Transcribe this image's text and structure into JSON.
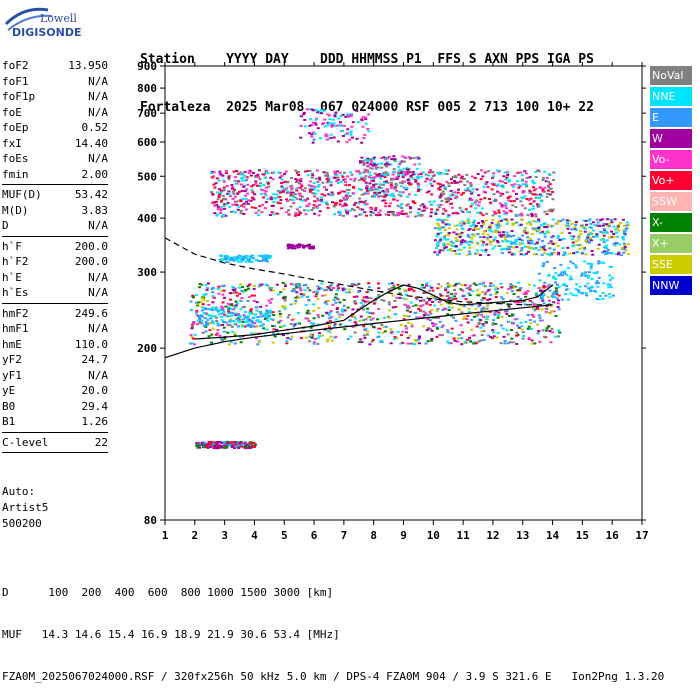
{
  "logo": {
    "line1": "Lowell",
    "line2": "DIGISONDE"
  },
  "header": {
    "labels": "Station    YYYY DAY    DDD HHMMSS P1  FFS S AXN PPS IGA PS",
    "values": "Fortaleza  2025 Mar08  067 024000 RSF 005 2 713 100 10+ 22"
  },
  "params": [
    {
      "name": "foF2",
      "value": "13.950"
    },
    {
      "name": "foF1",
      "value": "N/A"
    },
    {
      "name": "foF1p",
      "value": "N/A"
    },
    {
      "name": "foE",
      "value": "N/A"
    },
    {
      "name": "foEp",
      "value": "0.52"
    },
    {
      "name": "fxI",
      "value": "14.40"
    },
    {
      "name": "foEs",
      "value": "N/A"
    },
    {
      "name": "fmin",
      "value": "2.00"
    },
    {
      "sep": true
    },
    {
      "name": "MUF(D)",
      "value": "53.42"
    },
    {
      "name": "M(D)",
      "value": "3.83"
    },
    {
      "name": "D",
      "value": "N/A"
    },
    {
      "sep": true
    },
    {
      "name": "h`F",
      "value": "200.0"
    },
    {
      "name": "h`F2",
      "value": "200.0"
    },
    {
      "name": "h`E",
      "value": "N/A"
    },
    {
      "name": "h`Es",
      "value": "N/A"
    },
    {
      "sep": true
    },
    {
      "name": "hmF2",
      "value": "249.6"
    },
    {
      "name": "hmF1",
      "value": "N/A"
    },
    {
      "name": "hmE",
      "value": "110.0"
    },
    {
      "name": "yF2",
      "value": "24.7"
    },
    {
      "name": "yF1",
      "value": "N/A"
    },
    {
      "name": "yE",
      "value": "20.0"
    },
    {
      "name": "B0",
      "value": "29.4"
    },
    {
      "name": "B1",
      "value": "1.26"
    },
    {
      "sep": true
    },
    {
      "name": "C-level",
      "value": "22"
    },
    {
      "sep": true
    }
  ],
  "auto": {
    "line1": "Auto:",
    "line2": "Artist5",
    "line3": "500200"
  },
  "legend": [
    {
      "label": "NoVal",
      "color": "#808080"
    },
    {
      "label": "NNE",
      "color": "#00e5ff"
    },
    {
      "label": "E",
      "color": "#3399ff"
    },
    {
      "label": "W",
      "color": "#a000a0"
    },
    {
      "label": "Vo-",
      "color": "#ff33cc"
    },
    {
      "label": "Vo+",
      "color": "#ff0033"
    },
    {
      "label": "SSW",
      "color": "#ffb3b3"
    },
    {
      "label": "X-",
      "color": "#008000"
    },
    {
      "label": "X+",
      "color": "#99cc66"
    },
    {
      "label": "SSE",
      "color": "#cccc00"
    },
    {
      "label": "NNW",
      "color": "#0000cc"
    }
  ],
  "footer": {
    "line1": "D      100  200  400  600  800 1000 1500 3000 [km]",
    "line2": "MUF   14.3 14.6 15.4 16.9 18.9 21.9 30.6 53.4 [MHz]",
    "line3": "FZA0M_2025067024000.RSF / 320fx256h 50 kHz 5.0 km / DPS-4 FZA0M 904 / 3.9 S 321.6 E   Ion2Png 1.3.20"
  },
  "chart_data": {
    "type": "scatter",
    "title": "",
    "xlabel": "",
    "ylabel": "",
    "xlim": [
      1,
      17
    ],
    "ylim": [
      80,
      900
    ],
    "yscale": "log",
    "xticks": [
      1,
      2,
      3,
      4,
      5,
      6,
      7,
      8,
      9,
      10,
      11,
      12,
      13,
      14,
      15,
      16,
      17
    ],
    "yticks": [
      80,
      200,
      300,
      400,
      500,
      600,
      700,
      800,
      900
    ],
    "grid": false,
    "legend_placement": "right",
    "series": [
      {
        "color": "#000000",
        "style": "solid",
        "points": [
          [
            2.0,
            210
          ],
          [
            3.0,
            212
          ],
          [
            4.0,
            215
          ],
          [
            5.0,
            220
          ],
          [
            6.0,
            225
          ],
          [
            7.0,
            232
          ],
          [
            7.5,
            245
          ],
          [
            8.0,
            258
          ],
          [
            8.5,
            270
          ],
          [
            9.0,
            280
          ],
          [
            9.5,
            275
          ],
          [
            10.0,
            265
          ],
          [
            10.5,
            255
          ],
          [
            11.0,
            252
          ],
          [
            12.0,
            255
          ],
          [
            13.0,
            258
          ],
          [
            13.5,
            263
          ],
          [
            14.0,
            280
          ]
        ]
      },
      {
        "color": "#000000",
        "style": "solid",
        "points": [
          [
            1.0,
            190
          ],
          [
            2.0,
            200
          ],
          [
            3.0,
            207
          ],
          [
            4.0,
            212
          ],
          [
            5.0,
            216
          ],
          [
            6.0,
            220
          ],
          [
            7.0,
            224
          ],
          [
            8.0,
            228
          ],
          [
            9.0,
            232
          ],
          [
            10.0,
            236
          ],
          [
            11.0,
            240
          ],
          [
            12.0,
            244
          ],
          [
            13.0,
            248
          ],
          [
            14.0,
            252
          ]
        ]
      },
      {
        "color": "#000000",
        "style": "dashed",
        "points": [
          [
            1.0,
            360
          ],
          [
            2.0,
            330
          ],
          [
            3.0,
            315
          ],
          [
            4.0,
            305
          ],
          [
            5.0,
            297
          ],
          [
            6.0,
            288
          ],
          [
            7.0,
            280
          ],
          [
            8.0,
            272
          ],
          [
            9.0,
            265
          ],
          [
            10.0,
            260
          ],
          [
            11.0,
            256
          ],
          [
            12.0,
            254
          ],
          [
            13.0,
            252
          ],
          [
            14.0,
            252
          ]
        ]
      }
    ],
    "scatter_regions": [
      {
        "x": [
          1.8,
          14.2
        ],
        "y": [
          205,
          285
        ],
        "colors": [
          "#3399ff",
          "#00e5ff",
          "#ff0033",
          "#ff33cc",
          "#808080",
          "#a000a0",
          "#008000",
          "#cccc00"
        ]
      },
      {
        "x": [
          2.0,
          4.5
        ],
        "y": [
          225,
          250
        ],
        "colors": [
          "#3399ff",
          "#00e5ff"
        ]
      },
      {
        "x": [
          13.5,
          16.0
        ],
        "y": [
          260,
          320
        ],
        "colors": [
          "#3399ff",
          "#00e5ff"
        ]
      },
      {
        "x": [
          2.5,
          14.0
        ],
        "y": [
          405,
          520
        ],
        "colors": [
          "#ff33cc",
          "#ff0033",
          "#a000a0",
          "#00e5ff",
          "#808080"
        ]
      },
      {
        "x": [
          7.5,
          9.5
        ],
        "y": [
          450,
          560
        ],
        "colors": [
          "#ff33cc",
          "#00e5ff",
          "#a000a0",
          "#808080"
        ]
      },
      {
        "x": [
          10.0,
          16.5
        ],
        "y": [
          330,
          400
        ],
        "colors": [
          "#00e5ff",
          "#3399ff",
          "#a000a0",
          "#cccc00"
        ]
      },
      {
        "x": [
          2.8,
          4.5
        ],
        "y": [
          318,
          330
        ],
        "colors": [
          "#3399ff",
          "#00e5ff"
        ]
      },
      {
        "x": [
          5.0,
          6.0
        ],
        "y": [
          342,
          350
        ],
        "colors": [
          "#a000a0"
        ]
      },
      {
        "x": [
          5.5,
          7.8
        ],
        "y": [
          600,
          720
        ],
        "colors": [
          "#ff33cc",
          "#a000a0",
          "#00e5ff"
        ]
      },
      {
        "x": [
          2.0,
          4.0
        ],
        "y": [
          118,
          122
        ],
        "colors": [
          "#3399ff",
          "#008000",
          "#ff0033",
          "#a000a0"
        ]
      }
    ]
  }
}
